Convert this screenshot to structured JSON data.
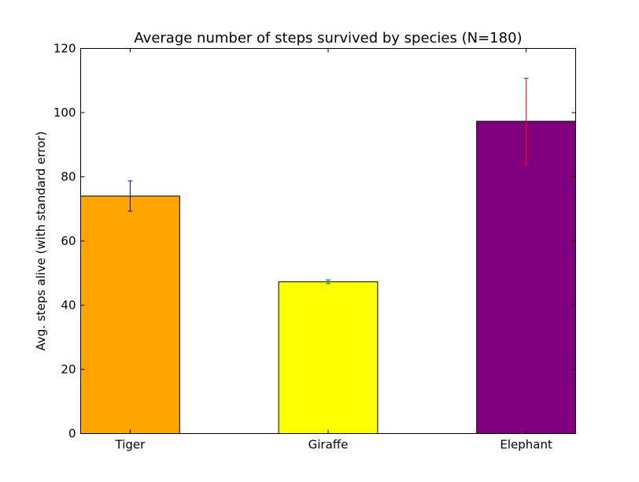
{
  "chart_data": {
    "type": "bar",
    "title": "Average number of steps survived by species (N=180)",
    "xlabel": "",
    "ylabel": "Avg. steps alive (with standard error)",
    "categories": [
      "Tiger",
      "Giraffe",
      "Elephant"
    ],
    "values": [
      74,
      47.3,
      97.3
    ],
    "errors": [
      4.7,
      0.6,
      13.4
    ],
    "bar_colors": [
      "#FFA500",
      "#FFFF00",
      "#800080"
    ],
    "error_colors": [
      "#0000ff",
      "#008000",
      "#ff0000"
    ],
    "ylim": [
      0,
      120
    ],
    "yticks": [
      0,
      20,
      40,
      60,
      80,
      100,
      120
    ],
    "grid": false
  }
}
